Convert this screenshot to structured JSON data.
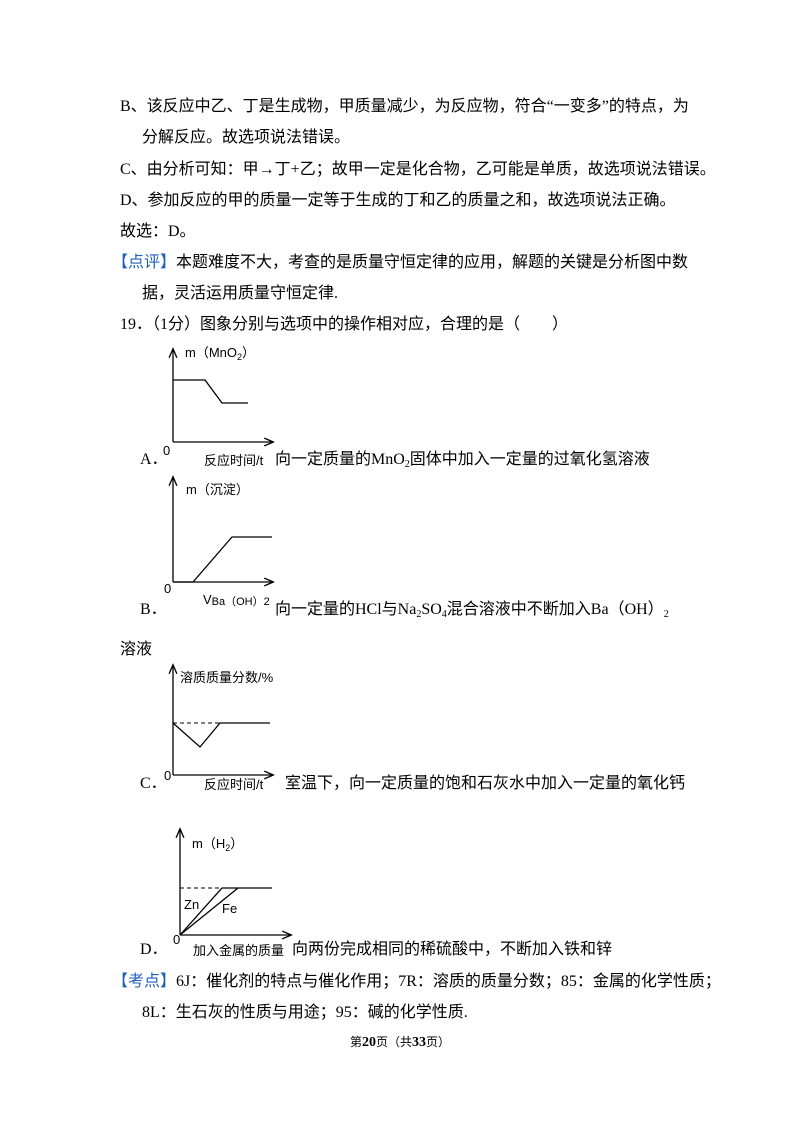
{
  "lines": [
    "B、该反应中乙、丁是生成物，甲质量减少，为反应物，符合“一变多”的特点，为",
    "分解反应。故选项说法错误。",
    "C、由分析可知：甲→丁+乙；故甲一定是化合物，乙可能是单质，故选项说法错误。",
    "D、参加反应的甲的质量一定等于生成的丁和乙的质量之和，故选项说法正确。",
    "故选：D。"
  ],
  "comment": {
    "tag": "【点评】",
    "line1": "本题难度不大，考查的是质量守恒定律的应用，解题的关键是分析图中数",
    "line2": "据，灵活运用质量守恒定律."
  },
  "question": "19．（1分）图象分别与选项中的操作相对应，合理的是（　　）",
  "options": [
    {
      "label": "A．",
      "y_axis": [
        "m（MnO",
        "2",
        "）"
      ],
      "origin": "0",
      "x_axis": "反应时间/t",
      "text": [
        "向一定质量的MnO",
        "2",
        "固体中加入一定量的过氧化氢溶液"
      ]
    },
    {
      "label": "B．",
      "y_axis": [
        "m（沉淀）"
      ],
      "origin": "0",
      "x_axis": [
        "V",
        "Ba（OH）2"
      ],
      "text": [
        "向一定量的HCl与Na",
        "2",
        "SO",
        "4",
        "混合溶液中不断加入Ba（OH）",
        "2"
      ],
      "text_cont": "溶液"
    },
    {
      "label": "C．",
      "y_axis": [
        "溶质质量分数/%"
      ],
      "origin": "0",
      "x_axis": "反应时间/t",
      "text": [
        "室温下，向一定质量的饱和石灰水中加入一定量的氧化钙"
      ]
    },
    {
      "label": "D．",
      "y_axis": [
        "m（H",
        "2",
        "）"
      ],
      "origin": "0",
      "x_axis": "加入金属的质量",
      "curves": [
        "Zn",
        "Fe"
      ],
      "text": [
        "向两份完成相同的稀硫酸中，不断加入铁和锌"
      ]
    }
  ],
  "points": {
    "tag": "【考点】",
    "line1": "6J：催化剂的特点与催化作用；7R：溶质的质量分数；85：金属的化学性质；",
    "line2": "8L：生石灰的性质与用途；95：碱的化学性质."
  },
  "footer": [
    "第",
    "20",
    "页（共",
    "33",
    "页）"
  ]
}
